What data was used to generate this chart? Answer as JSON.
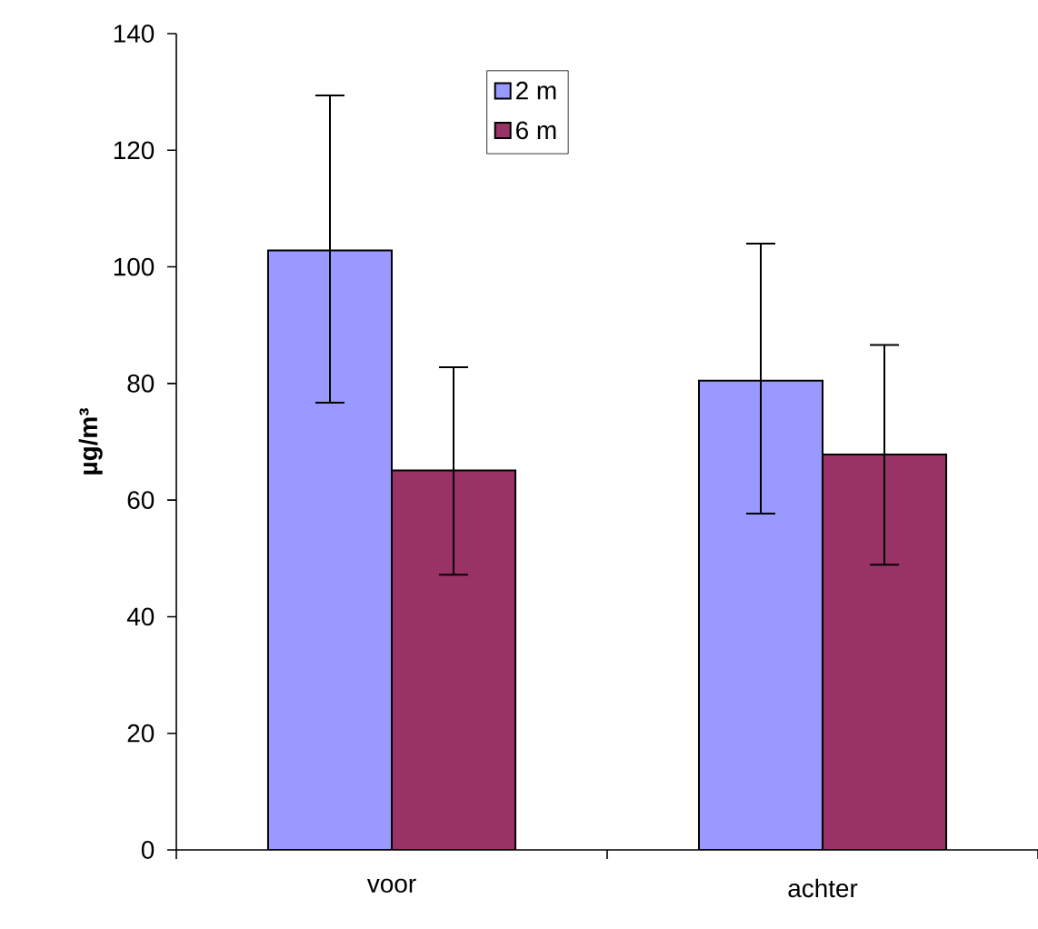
{
  "chart_data": {
    "type": "bar",
    "ylabel": "µg/m³",
    "categories": [
      "voor",
      "achter"
    ],
    "series": [
      {
        "name": "2 m",
        "color": "#9999ff",
        "values": [
          102.8,
          80.5
        ],
        "errors": [
          [
            76.7,
            129.4
          ],
          [
            57.7,
            104.0
          ]
        ]
      },
      {
        "name": "6 m",
        "color": "#993366",
        "values": [
          65.1,
          67.8
        ],
        "errors": [
          [
            47.2,
            82.8
          ],
          [
            48.9,
            86.6
          ]
        ]
      }
    ],
    "ylim": [
      0,
      140
    ],
    "yticks": [
      0,
      20,
      40,
      60,
      80,
      100,
      120,
      140
    ],
    "legend": "top"
  }
}
